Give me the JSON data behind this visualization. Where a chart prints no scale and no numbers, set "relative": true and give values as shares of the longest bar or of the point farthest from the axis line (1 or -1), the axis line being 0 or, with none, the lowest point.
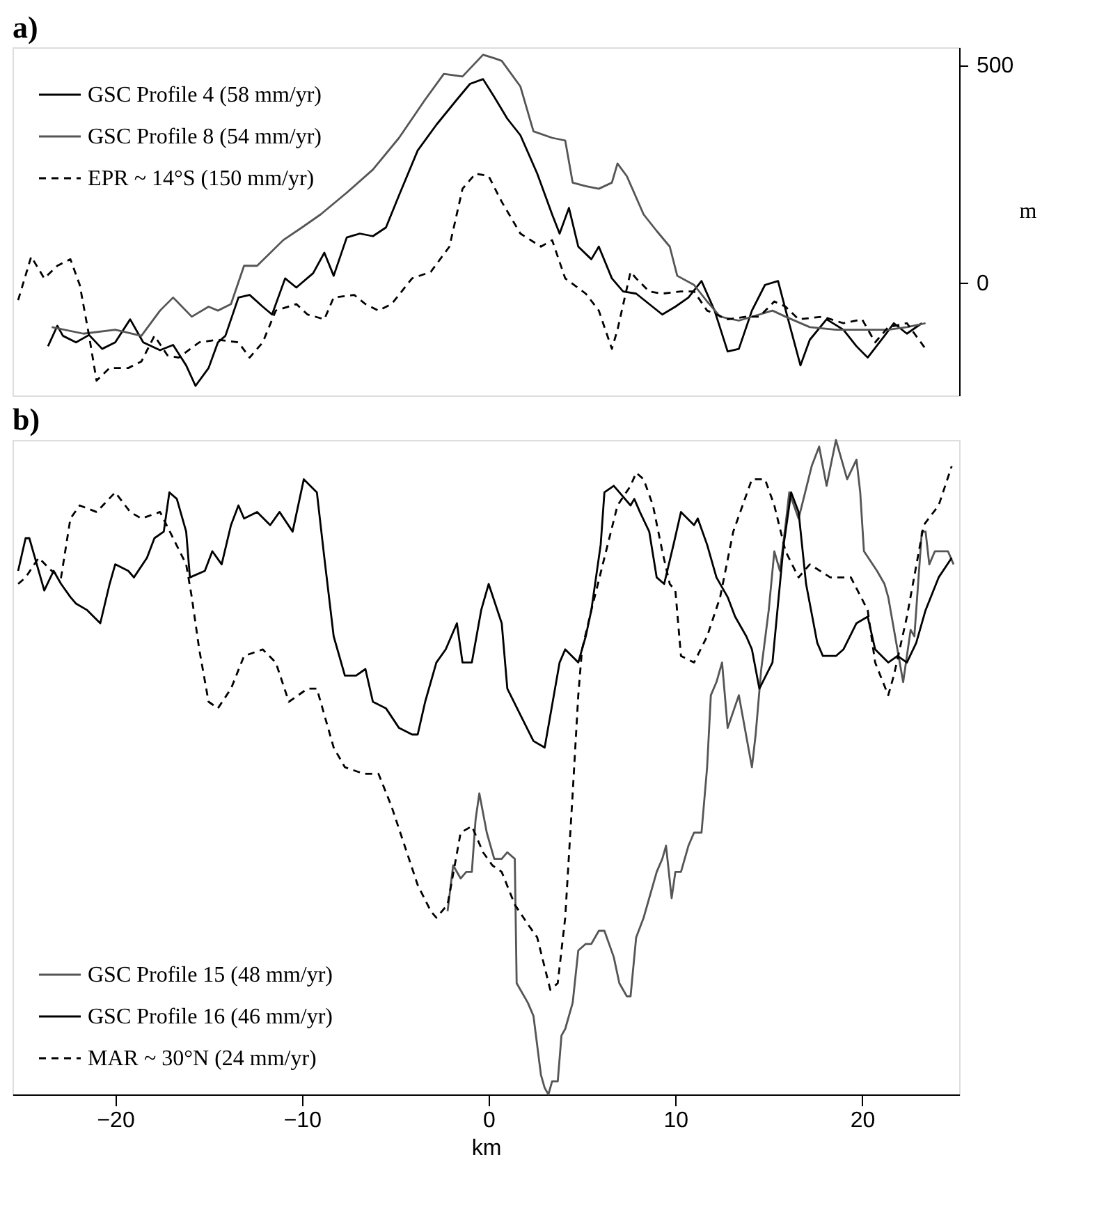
{
  "chart_data": [
    {
      "type": "line",
      "title": "a)",
      "ylabel": "m",
      "xlim": [
        -25.5,
        25.2
      ],
      "ylim": [
        -260,
        540
      ],
      "yticks": [
        0,
        500
      ],
      "tick_labels": "y",
      "grid": false,
      "legend": "top left",
      "marker": "none",
      "series": [
        {
          "name": "GSC Profile 4 (58 mm/yr)",
          "color": "#000000",
          "line_style": "solid",
          "x": [
            -23.6,
            -23.1,
            -22.8,
            -22.1,
            -21.4,
            -20.7,
            -20.0,
            -19.2,
            -18.5,
            -17.6,
            -16.9,
            -16.2,
            -15.7,
            -15.0,
            -14.5,
            -14.1,
            -13.4,
            -12.8,
            -12.1,
            -11.6,
            -10.9,
            -10.3,
            -9.4,
            -8.8,
            -8.3,
            -7.6,
            -6.9,
            -6.2,
            -5.5,
            -4.8,
            -3.8,
            -2.8,
            -1.7,
            -1.0,
            -0.3,
            0.3,
            1.0,
            1.7,
            2.6,
            3.4,
            3.8,
            4.3,
            4.8,
            5.5,
            5.9,
            6.6,
            7.2,
            7.9,
            8.6,
            9.3,
            10.0,
            10.7,
            11.4,
            12.1,
            12.8,
            13.4,
            14.1,
            14.8,
            15.5,
            16.0,
            16.7,
            17.2,
            18.1,
            19.0,
            19.7,
            20.3,
            21.2,
            21.7,
            22.4,
            23.2
          ],
          "values": [
            -147,
            -100,
            -123,
            -138,
            -121,
            -153,
            -138,
            -85,
            -138,
            -156,
            -144,
            -191,
            -238,
            -197,
            -138,
            -123,
            -35,
            -29,
            -56,
            -74,
            9,
            -12,
            21,
            68,
            15,
            103,
            112,
            106,
            126,
            200,
            303,
            362,
            420,
            456,
            467,
            426,
            376,
            338,
            250,
            156,
            112,
            171,
            82,
            53,
            82,
            9,
            -21,
            -26,
            -50,
            -74,
            -56,
            -35,
            3,
            -65,
            -159,
            -153,
            -65,
            -6,
            3,
            -79,
            -191,
            -132,
            -85,
            -109,
            -147,
            -173,
            -123,
            -94,
            -118,
            -94
          ]
        },
        {
          "name": "GSC Profile 8 (54 mm/yr)",
          "color": "#555555",
          "line_style": "solid",
          "x": [
            -23.4,
            -21.7,
            -20.0,
            -18.6,
            -17.6,
            -16.9,
            -15.9,
            -15.0,
            -14.5,
            -13.8,
            -13.1,
            -12.4,
            -11.0,
            -10.0,
            -9.0,
            -7.6,
            -6.2,
            -4.8,
            -3.4,
            -2.4,
            -1.4,
            -0.3,
            0.3,
            0.7,
            1.7,
            2.4,
            3.4,
            4.1,
            4.5,
            5.2,
            5.9,
            6.6,
            6.9,
            7.4,
            8.3,
            9.0,
            9.7,
            10.1,
            11.0,
            11.7,
            12.4,
            13.4,
            14.5,
            15.2,
            15.9,
            17.2,
            18.6,
            20.0,
            21.4,
            22.4,
            23.4
          ],
          "values": [
            -103,
            -118,
            -109,
            -123,
            -65,
            -35,
            -79,
            -56,
            -65,
            -50,
            38,
            38,
            97,
            126,
            156,
            206,
            259,
            332,
            420,
            479,
            473,
            523,
            515,
            509,
            450,
            347,
            332,
            326,
            229,
            221,
            215,
            229,
            273,
            244,
            156,
            118,
            82,
            15,
            -6,
            -44,
            -79,
            -88,
            -74,
            -65,
            -79,
            -103,
            -109,
            -109,
            -109,
            -103,
            -94
          ]
        },
        {
          "name": "EPR ~ 14°S (150 mm/yr)",
          "color": "#000000",
          "line_style": "dashed",
          "x": [
            -25.2,
            -24.5,
            -23.8,
            -23.1,
            -22.4,
            -21.9,
            -21.4,
            -21.0,
            -20.3,
            -19.3,
            -18.6,
            -17.9,
            -17.2,
            -16.6,
            -15.5,
            -14.5,
            -13.4,
            -12.8,
            -12.1,
            -11.4,
            -10.3,
            -9.7,
            -8.8,
            -8.3,
            -7.2,
            -6.6,
            -5.9,
            -5.2,
            -4.1,
            -3.1,
            -2.1,
            -1.4,
            -0.7,
            0.0,
            0.7,
            1.7,
            2.8,
            3.4,
            4.1,
            5.2,
            5.9,
            6.6,
            6.9,
            7.6,
            7.9,
            8.6,
            9.3,
            10.3,
            11.0,
            11.7,
            12.8,
            13.8,
            14.5,
            15.3,
            15.9,
            16.6,
            17.9,
            19.0,
            20.0,
            20.7,
            21.4,
            22.4,
            23.4
          ],
          "values": [
            -41,
            59,
            9,
            38,
            53,
            -6,
            -123,
            -226,
            -197,
            -197,
            -182,
            -123,
            -168,
            -173,
            -138,
            -132,
            -138,
            -173,
            -138,
            -65,
            -50,
            -74,
            -85,
            -35,
            -29,
            -50,
            -65,
            -50,
            9,
            24,
            82,
            215,
            250,
            244,
            185,
            112,
            82,
            97,
            9,
            -26,
            -65,
            -153,
            -109,
            24,
            9,
            -21,
            -26,
            -21,
            -21,
            -65,
            -85,
            -79,
            -79,
            -44,
            -56,
            -85,
            -79,
            -94,
            -85,
            -138,
            -103,
            -94,
            -153
          ]
        }
      ]
    },
    {
      "type": "line",
      "title": "b)",
      "xlabel": "km",
      "xlim": [
        -25.5,
        25.2
      ],
      "xticks": [
        -20,
        -10,
        0,
        10,
        20
      ],
      "relative": true,
      "tick_labels": "x",
      "grid": false,
      "legend": "bottom left",
      "marker": "none",
      "series": [
        {
          "name": "GSC Profile 15 (48 mm/yr)",
          "color": "#555555",
          "line_style": "solid",
          "x": [
            -2.2,
            -1.9,
            -1.5,
            -1.2,
            -0.9,
            -0.7,
            -0.5,
            -0.1,
            0.3,
            0.7,
            1.0,
            1.4,
            1.5,
            2.1,
            2.4,
            2.8,
            3.0,
            3.2,
            3.4,
            3.7,
            3.9,
            4.1,
            4.5,
            4.8,
            5.2,
            5.5,
            5.9,
            6.2,
            6.7,
            7.0,
            7.4,
            7.6,
            7.9,
            8.3,
            8.6,
            9.0,
            9.3,
            9.5,
            9.8,
            10.0,
            10.3,
            10.7,
            11.0,
            11.4,
            11.7,
            11.9,
            12.2,
            12.5,
            12.8,
            13.4,
            14.1,
            14.3,
            14.6,
            15.0,
            15.3,
            15.6,
            15.9,
            16.1,
            16.6,
            17.3,
            17.7,
            18.1,
            18.6,
            18.9,
            19.2,
            19.7,
            19.9,
            20.1,
            20.8,
            21.2,
            21.4,
            22.2,
            22.6,
            22.8,
            23.2,
            23.4,
            23.6,
            23.9,
            24.6,
            24.9
          ],
          "values": [
            0.28,
            0.35,
            0.33,
            0.34,
            0.34,
            0.42,
            0.46,
            0.4,
            0.36,
            0.36,
            0.37,
            0.36,
            0.17,
            0.14,
            0.12,
            0.03,
            0.01,
            0,
            0.02,
            0.02,
            0.09,
            0.1,
            0.14,
            0.22,
            0.23,
            0.23,
            0.25,
            0.25,
            0.21,
            0.17,
            0.15,
            0.15,
            0.24,
            0.27,
            0.3,
            0.34,
            0.36,
            0.38,
            0.3,
            0.34,
            0.34,
            0.38,
            0.4,
            0.4,
            0.5,
            0.61,
            0.63,
            0.66,
            0.56,
            0.61,
            0.5,
            0.55,
            0.65,
            0.74,
            0.83,
            0.8,
            0.87,
            0.92,
            0.88,
            0.96,
            0.99,
            0.93,
            1.0,
            0.97,
            0.94,
            0.97,
            0.92,
            0.83,
            0.8,
            0.78,
            0.76,
            0.63,
            0.71,
            0.7,
            0.86,
            0.86,
            0.81,
            0.83,
            0.83,
            0.81
          ]
        },
        {
          "name": "GSC Profile 16 (46 mm/yr)",
          "color": "#000000",
          "line_style": "solid",
          "x": [
            -25.2,
            -24.8,
            -24.6,
            -24.3,
            -23.8,
            -23.3,
            -22.9,
            -22.4,
            -22.1,
            -21.5,
            -20.8,
            -20.3,
            -20.0,
            -19.3,
            -19.0,
            -18.3,
            -17.9,
            -17.4,
            -17.1,
            -16.7,
            -16.2,
            -16.0,
            -15.2,
            -14.8,
            -14.3,
            -13.8,
            -13.4,
            -13.1,
            -12.4,
            -11.7,
            -11.2,
            -10.5,
            -9.9,
            -9.2,
            -8.8,
            -8.3,
            -7.7,
            -7.1,
            -6.6,
            -6.2,
            -5.5,
            -4.8,
            -4.1,
            -3.8,
            -3.4,
            -2.8,
            -2.3,
            -1.7,
            -1.4,
            -0.9,
            -0.4,
            0.0,
            0.7,
            1.0,
            1.7,
            2.4,
            3.0,
            3.8,
            4.1,
            4.8,
            5.2,
            5.5,
            6.0,
            6.2,
            6.7,
            7.0,
            7.6,
            7.8,
            8.1,
            8.6,
            9.0,
            9.4,
            9.9,
            10.3,
            11.0,
            11.2,
            11.7,
            12.2,
            12.8,
            13.2,
            13.8,
            14.1,
            14.5,
            15.2,
            15.8,
            16.2,
            16.6,
            17.0,
            17.6,
            17.9,
            18.6,
            19.0,
            19.7,
            20.3,
            20.7,
            21.4,
            21.9,
            22.4,
            22.9,
            23.4,
            24.1,
            24.8
          ],
          "values": [
            0.8,
            0.85,
            0.85,
            0.82,
            0.77,
            0.8,
            0.78,
            0.76,
            0.75,
            0.74,
            0.72,
            0.78,
            0.81,
            0.8,
            0.79,
            0.82,
            0.85,
            0.86,
            0.92,
            0.91,
            0.86,
            0.79,
            0.8,
            0.83,
            0.81,
            0.87,
            0.9,
            0.88,
            0.89,
            0.87,
            0.89,
            0.86,
            0.94,
            0.92,
            0.82,
            0.7,
            0.64,
            0.64,
            0.65,
            0.6,
            0.59,
            0.56,
            0.55,
            0.55,
            0.6,
            0.66,
            0.68,
            0.72,
            0.66,
            0.66,
            0.74,
            0.78,
            0.72,
            0.62,
            0.58,
            0.54,
            0.53,
            0.66,
            0.68,
            0.66,
            0.7,
            0.74,
            0.84,
            0.92,
            0.93,
            0.92,
            0.9,
            0.91,
            0.89,
            0.86,
            0.79,
            0.78,
            0.84,
            0.89,
            0.87,
            0.88,
            0.84,
            0.79,
            0.76,
            0.73,
            0.7,
            0.68,
            0.62,
            0.66,
            0.84,
            0.92,
            0.89,
            0.78,
            0.69,
            0.67,
            0.67,
            0.68,
            0.72,
            0.73,
            0.68,
            0.66,
            0.67,
            0.66,
            0.69,
            0.74,
            0.79,
            0.82
          ]
        },
        {
          "name": "MAR ~ 30°N (24 mm/yr)",
          "color": "#000000",
          "line_style": "dashed",
          "x": [
            -25.2,
            -24.8,
            -24.1,
            -23.4,
            -22.9,
            -22.4,
            -21.9,
            -21.0,
            -20.0,
            -19.2,
            -18.6,
            -17.6,
            -16.9,
            -16.2,
            -15.9,
            -15.5,
            -15.0,
            -14.5,
            -13.8,
            -13.1,
            -12.1,
            -11.4,
            -10.7,
            -10.2,
            -9.7,
            -9.2,
            -8.8,
            -8.3,
            -7.7,
            -6.7,
            -5.9,
            -5.2,
            -4.5,
            -3.8,
            -3.1,
            -2.8,
            -2.2,
            -1.5,
            -0.9,
            -0.3,
            0.2,
            0.7,
            1.4,
            2.1,
            2.6,
            3.3,
            3.7,
            4.1,
            4.5,
            4.8,
            5.0,
            5.5,
            6.2,
            6.9,
            7.6,
            7.9,
            8.3,
            8.8,
            9.3,
            9.7,
            10.0,
            10.3,
            11.0,
            11.7,
            12.4,
            13.1,
            14.1,
            14.8,
            15.3,
            15.9,
            16.6,
            17.2,
            18.3,
            19.4,
            20.3,
            20.7,
            21.4,
            21.7,
            22.4,
            23.3,
            24.1,
            24.8
          ],
          "values": [
            0.78,
            0.79,
            0.82,
            0.8,
            0.79,
            0.88,
            0.9,
            0.89,
            0.92,
            0.89,
            0.88,
            0.89,
            0.85,
            0.81,
            0.76,
            0.68,
            0.6,
            0.59,
            0.62,
            0.67,
            0.68,
            0.66,
            0.6,
            0.61,
            0.62,
            0.62,
            0.58,
            0.53,
            0.5,
            0.49,
            0.49,
            0.44,
            0.38,
            0.32,
            0.28,
            0.27,
            0.29,
            0.4,
            0.41,
            0.37,
            0.35,
            0.34,
            0.29,
            0.26,
            0.24,
            0.16,
            0.17,
            0.27,
            0.46,
            0.61,
            0.68,
            0.74,
            0.82,
            0.9,
            0.93,
            0.95,
            0.94,
            0.9,
            0.83,
            0.78,
            0.77,
            0.67,
            0.66,
            0.7,
            0.76,
            0.86,
            0.94,
            0.94,
            0.9,
            0.83,
            0.79,
            0.81,
            0.79,
            0.79,
            0.74,
            0.66,
            0.61,
            0.64,
            0.73,
            0.87,
            0.9,
            0.96
          ]
        }
      ]
    }
  ]
}
